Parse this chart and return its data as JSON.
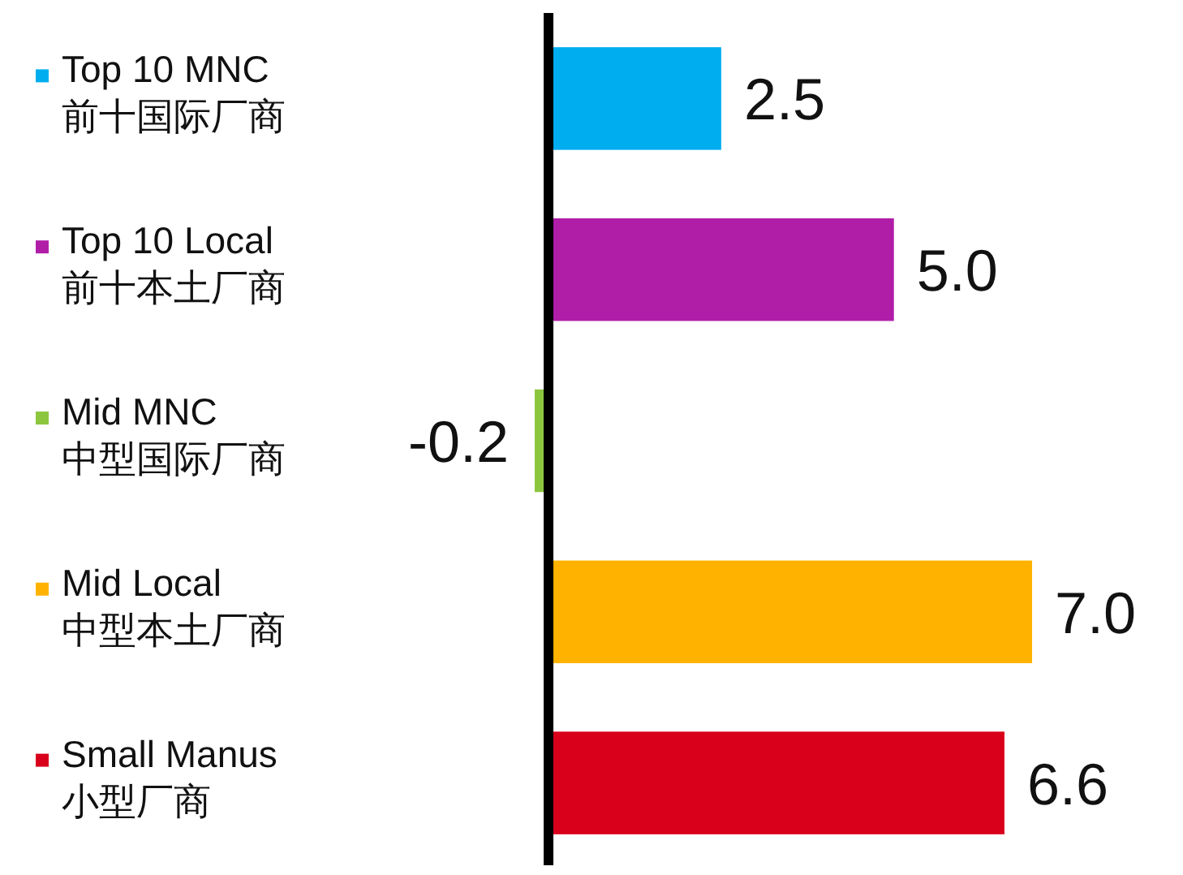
{
  "chart_data": {
    "type": "bar",
    "orientation": "horizontal",
    "categories": [
      "Top 10 MNC\n前十国际厂商",
      "Top 10 Local\n前十本土厂商",
      "Mid MNC\n中型国际厂商",
      "Mid Local\n中型本土厂商",
      "Small Manus\n小型厂商"
    ],
    "values": [
      2.5,
      5.0,
      -0.2,
      7.0,
      6.6
    ],
    "colors": [
      "#00aeef",
      "#b01ea8",
      "#8cc63f",
      "#ffb300",
      "#d9001b"
    ],
    "value_labels": [
      "2.5",
      "5.0",
      "-0.2",
      "7.0",
      "6.6"
    ],
    "tick_labels": "y"
  }
}
